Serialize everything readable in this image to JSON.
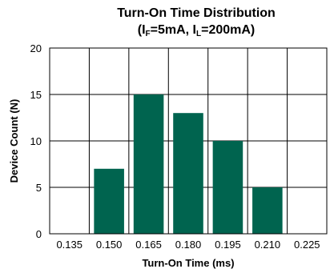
{
  "chart_data": {
    "type": "bar",
    "title_line1": "Turn-On Time Distribution",
    "title_line2": {
      "open": "(I",
      "sub1": "F",
      "mid": "=5mA, I",
      "sub2": "L",
      "close": "=200mA)"
    },
    "xlabel": "Turn-On Time (ms)",
    "ylabel": "Device Count (N)",
    "x_ticks": [
      "0.135",
      "0.150",
      "0.165",
      "0.180",
      "0.195",
      "0.210",
      "0.225"
    ],
    "categories": [
      "0.150",
      "0.165",
      "0.180",
      "0.195",
      "0.210"
    ],
    "values": [
      7,
      15,
      13,
      10,
      5
    ],
    "y_ticks": [
      0,
      5,
      10,
      15,
      20
    ],
    "ylim": [
      0,
      20
    ],
    "grid": true,
    "bar_color": "#00644f"
  }
}
